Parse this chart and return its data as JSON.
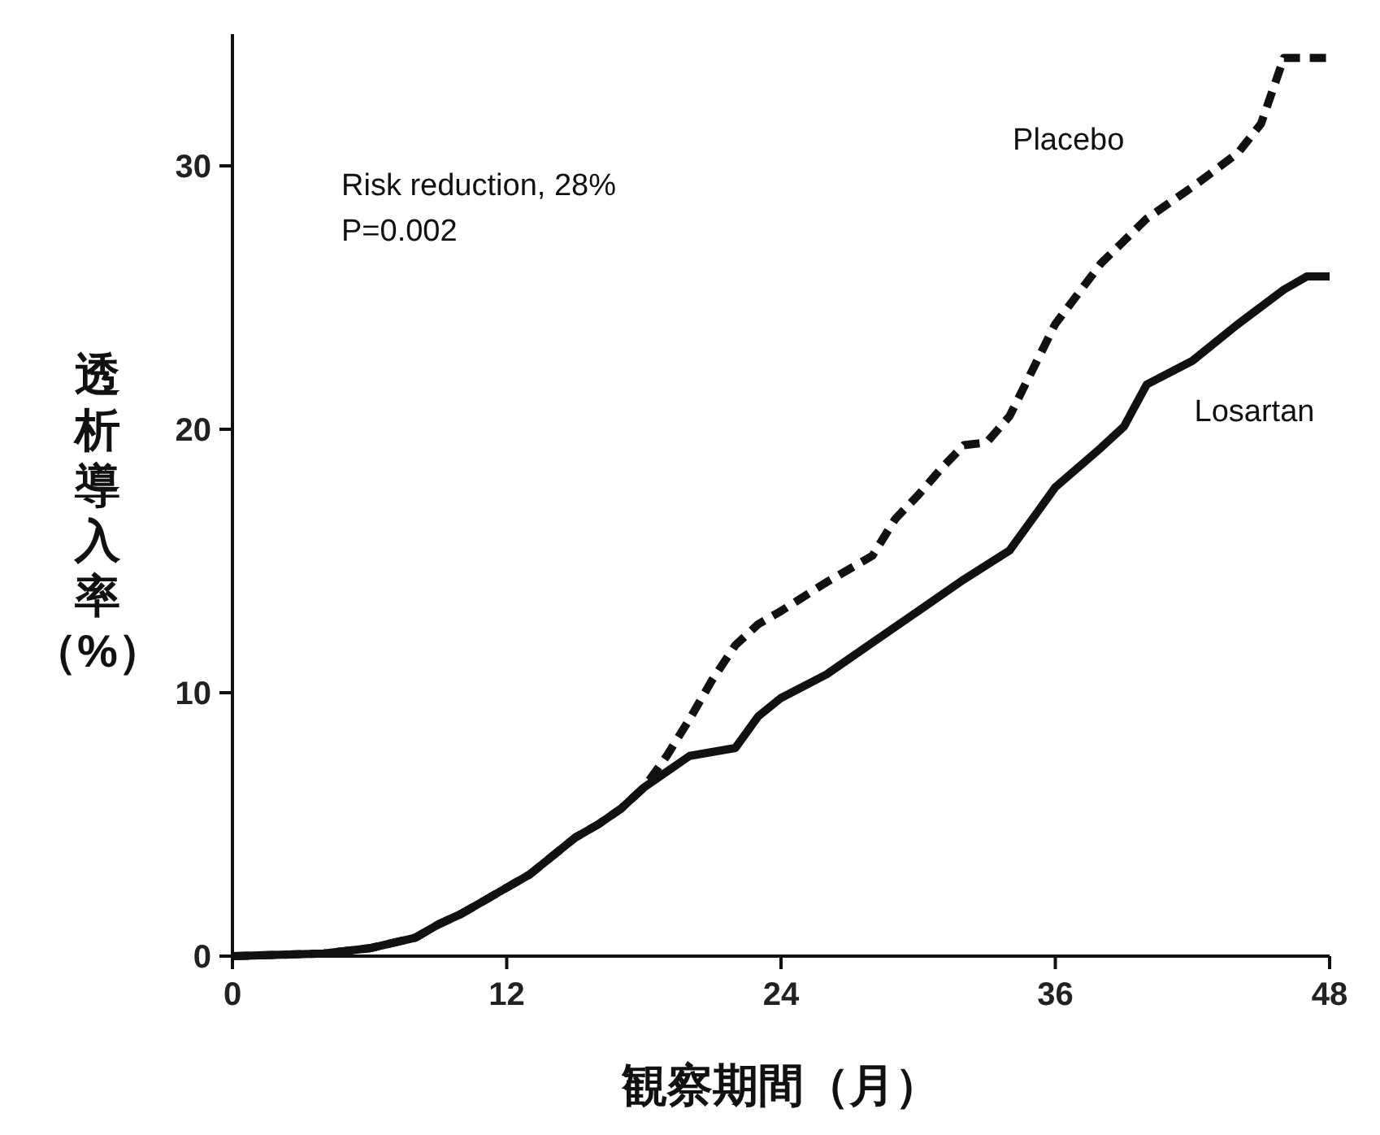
{
  "chart_data": {
    "type": "line",
    "xlabel": "観察期間（月）",
    "ylabel": "透析導入率（%）",
    "annotations": [
      "Risk reduction, 28%",
      "P=0.002"
    ],
    "xlim": [
      0,
      48
    ],
    "ylim": [
      0,
      35
    ],
    "xticks": [
      0,
      12,
      24,
      36,
      48
    ],
    "yticks": [
      0,
      10,
      20,
      30
    ],
    "grid": false,
    "series": [
      {
        "name": "Placebo",
        "color": "#111111",
        "line_style": "dashed",
        "x": [
          0,
          4,
          6,
          8,
          9,
          10,
          11,
          12,
          13,
          14,
          15,
          16,
          17,
          18,
          19,
          20,
          21,
          22,
          23,
          24,
          26,
          28,
          29,
          30,
          31,
          32,
          33,
          34,
          36,
          38,
          40,
          42,
          44,
          45,
          46,
          48
        ],
        "values": [
          0,
          0.1,
          0.3,
          0.7,
          1.2,
          1.6,
          2.1,
          2.6,
          3.1,
          3.8,
          4.5,
          5.0,
          5.6,
          6.4,
          7.6,
          9.0,
          10.5,
          11.8,
          12.6,
          13.1,
          14.2,
          15.2,
          16.6,
          17.5,
          18.5,
          19.4,
          19.5,
          20.5,
          24,
          26.3,
          28,
          29.2,
          30.5,
          31.6,
          34.1,
          34.1
        ]
      },
      {
        "name": "Losartan",
        "color": "#111111",
        "line_style": "solid",
        "x": [
          0,
          4,
          6,
          8,
          9,
          10,
          11,
          12,
          13,
          14,
          15,
          16,
          17,
          18,
          20,
          22,
          23,
          24,
          26,
          28,
          30,
          32,
          34,
          36,
          38,
          39,
          40,
          42,
          44,
          46,
          47,
          48
        ],
        "values": [
          0,
          0.1,
          0.3,
          0.7,
          1.2,
          1.6,
          2.1,
          2.6,
          3.1,
          3.8,
          4.5,
          5.0,
          5.6,
          6.4,
          7.6,
          7.9,
          9.1,
          9.8,
          10.7,
          11.9,
          13.1,
          14.3,
          15.4,
          17.8,
          19.3,
          20.1,
          21.7,
          22.6,
          24,
          25.3,
          25.8,
          25.8
        ]
      }
    ]
  }
}
